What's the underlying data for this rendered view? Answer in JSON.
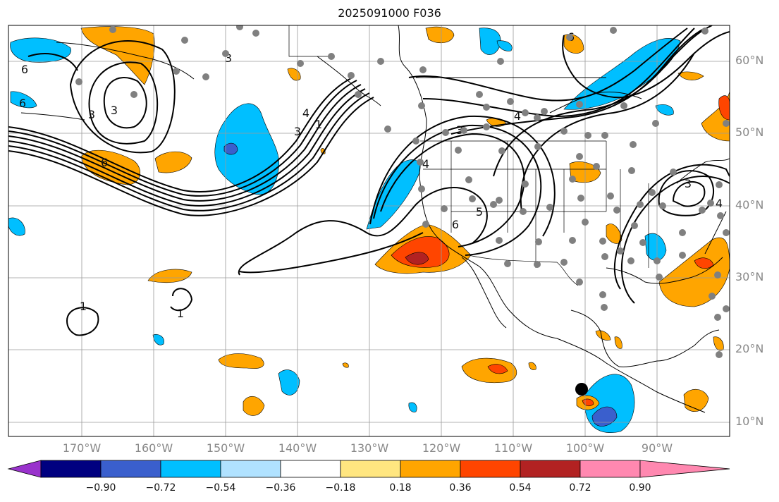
{
  "title": "2025091000 F036",
  "lat_labels": [
    "60°N",
    "50°N",
    "40°N",
    "30°N",
    "20°N",
    "10°N"
  ],
  "lon_labels": [
    "170°W",
    "160°W",
    "150°W",
    "140°W",
    "130°W",
    "120°W",
    "110°W",
    "100°W",
    "90°W"
  ],
  "colorbar": {
    "ticks": [
      "−0.90",
      "−0.72",
      "−0.54",
      "−0.36",
      "−0.18",
      "0.18",
      "0.36",
      "0.54",
      "0.72",
      "0.90"
    ],
    "colors": [
      "#9932cc",
      "#000080",
      "#3a5fcd",
      "#00bfff",
      "#b0e2ff",
      "#ffffff",
      "#ffe680",
      "#ffa500",
      "#ff4500",
      "#b22222",
      "#ff88b0"
    ]
  },
  "contour_labels": [
    "6",
    "6",
    "3",
    "3",
    "6",
    "4",
    "1",
    "3",
    "4",
    "3",
    "5",
    "6",
    "6",
    "4",
    "1",
    "1",
    "3",
    "4",
    "3"
  ],
  "colors": {
    "warm": "#ffa500",
    "warm2": "#ff4500",
    "warm3": "#b22222",
    "cool": "#00bfff",
    "cool2": "#3a5fcd",
    "grid": "#9a9a9a",
    "station": "#808080"
  }
}
